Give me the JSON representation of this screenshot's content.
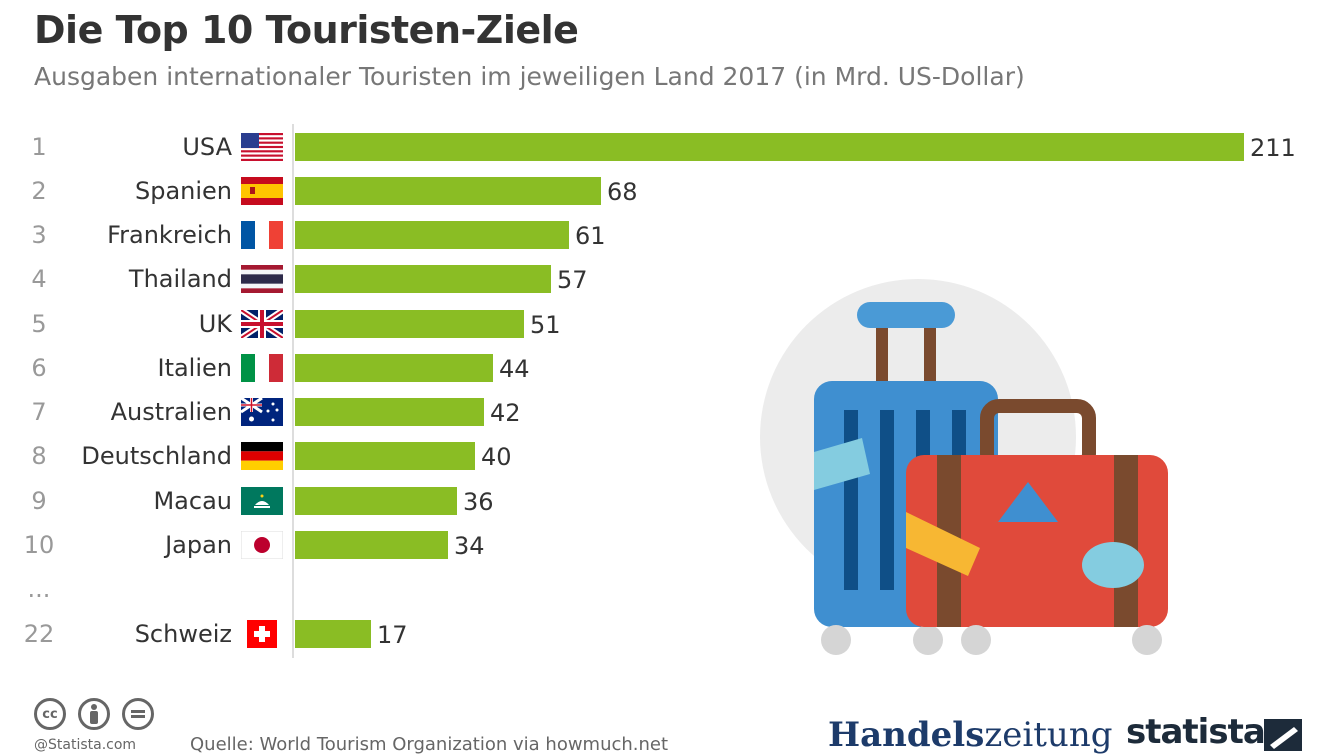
{
  "header": {
    "title": "Die Top 10 Touristen-Ziele",
    "subtitle": "Ausgaben internationaler Touristen im jeweiligen Land 2017 (in Mrd. US-Dollar)"
  },
  "chart_data": {
    "type": "bar",
    "orientation": "horizontal",
    "ranks": [
      "1",
      "2",
      "3",
      "4",
      "5",
      "6",
      "7",
      "8",
      "9",
      "10",
      "22"
    ],
    "categories": [
      "USA",
      "Spanien",
      "Frankreich",
      "Thailand",
      "UK",
      "Italien",
      "Australien",
      "Deutschland",
      "Macau",
      "Japan",
      "Schweiz"
    ],
    "values": [
      211,
      68,
      61,
      57,
      51,
      44,
      42,
      40,
      36,
      34,
      17
    ],
    "value_labels": [
      "211",
      "68",
      "61",
      "57",
      "51",
      "44",
      "42",
      "40",
      "36",
      "34",
      "17"
    ],
    "gap_marker": "...",
    "flags": [
      "usa-flag",
      "spain-flag",
      "france-flag",
      "thailand-flag",
      "uk-flag",
      "italy-flag",
      "australia-flag",
      "germany-flag",
      "macau-flag",
      "japan-flag",
      "switzerland-flag"
    ],
    "bar_color": "#8abd24",
    "xlim": [
      0,
      211
    ],
    "grid": false,
    "legend": "none"
  },
  "footer": {
    "credit": "@Statista.com",
    "source": "Quelle: World Tourism Organization via howmuch.net",
    "cc_icons": [
      "cc-icon",
      "by-icon",
      "nd-icon"
    ],
    "cc_text": "cc",
    "brand_handelszeitung_bold": "Handels",
    "brand_handelszeitung_regular": "zeitung",
    "brand_statista": "statista"
  },
  "colors": {
    "title": "#333333",
    "subtitle": "#777777",
    "bar": "#8abd24",
    "handelszeitung": "#1d3b6a",
    "statista": "#1d2b3a"
  }
}
